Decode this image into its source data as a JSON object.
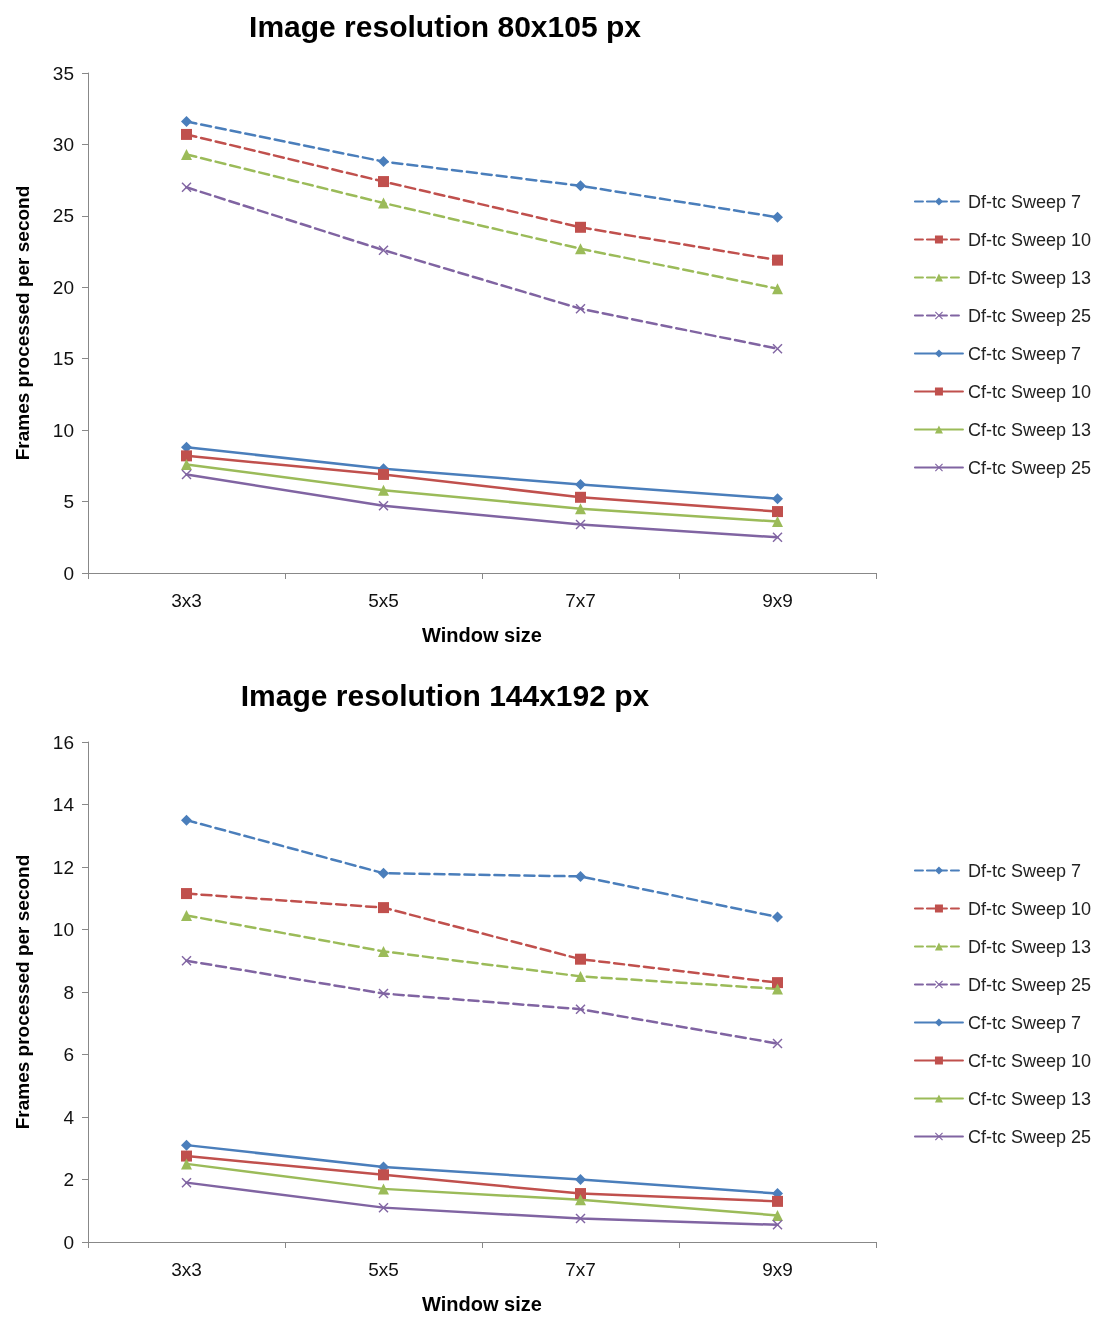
{
  "chart_data": [
    {
      "type": "line",
      "title": "Image resolution 80x105 px",
      "xlabel": "Window size",
      "ylabel": "Frames processed per second",
      "categories": [
        "3x3",
        "5x5",
        "7x7",
        "9x9"
      ],
      "ylim": [
        0,
        35
      ],
      "yticks": [
        0,
        5,
        10,
        15,
        20,
        25,
        30,
        35
      ],
      "grid": false,
      "legend": "right",
      "series": [
        {
          "name": "Df-tc Sweep 7",
          "color": "#4a7ebb",
          "marker": "diamond",
          "line_style": "dashed",
          "values": [
            31.6,
            28.8,
            27.1,
            24.9
          ]
        },
        {
          "name": "Df-tc Sweep 10",
          "color": "#c0504d",
          "marker": "square",
          "line_style": "dashed",
          "values": [
            30.7,
            27.4,
            24.2,
            21.9
          ]
        },
        {
          "name": "Df-tc Sweep 13",
          "color": "#9bbb59",
          "marker": "triangle",
          "line_style": "dashed",
          "values": [
            29.3,
            25.9,
            22.7,
            19.9
          ]
        },
        {
          "name": "Df-tc Sweep 25",
          "color": "#8064a2",
          "marker": "cross",
          "line_style": "dashed",
          "values": [
            27.0,
            22.6,
            18.5,
            15.7
          ]
        },
        {
          "name": "Cf-tc Sweep 7",
          "color": "#4a7ebb",
          "marker": "diamond",
          "line_style": "solid",
          "values": [
            8.8,
            7.3,
            6.2,
            5.2
          ]
        },
        {
          "name": "Cf-tc Sweep 10",
          "color": "#c0504d",
          "marker": "square",
          "line_style": "solid",
          "values": [
            8.2,
            6.9,
            5.3,
            4.3
          ]
        },
        {
          "name": "Cf-tc Sweep 13",
          "color": "#9bbb59",
          "marker": "triangle",
          "line_style": "solid",
          "values": [
            7.6,
            5.8,
            4.5,
            3.6
          ]
        },
        {
          "name": "Cf-tc Sweep 25",
          "color": "#8064a2",
          "marker": "cross",
          "line_style": "solid",
          "values": [
            6.9,
            4.7,
            3.4,
            2.5
          ]
        }
      ]
    },
    {
      "type": "line",
      "title": "Image resolution 144x192 px",
      "xlabel": "Window size",
      "ylabel": "Frames processed per second",
      "categories": [
        "3x3",
        "5x5",
        "7x7",
        "9x9"
      ],
      "ylim": [
        0,
        16
      ],
      "yticks": [
        0,
        2,
        4,
        6,
        8,
        10,
        12,
        14,
        16
      ],
      "grid": false,
      "legend": "right",
      "series": [
        {
          "name": "Df-tc Sweep 7",
          "color": "#4a7ebb",
          "marker": "diamond",
          "line_style": "dashed",
          "values": [
            13.5,
            11.8,
            11.7,
            10.4
          ]
        },
        {
          "name": "Df-tc Sweep 10",
          "color": "#c0504d",
          "marker": "square",
          "line_style": "dashed",
          "values": [
            11.15,
            10.7,
            9.05,
            8.3
          ]
        },
        {
          "name": "Df-tc Sweep 13",
          "color": "#9bbb59",
          "marker": "triangle",
          "line_style": "dashed",
          "values": [
            10.45,
            9.3,
            8.5,
            8.1
          ]
        },
        {
          "name": "Df-tc Sweep 25",
          "color": "#8064a2",
          "marker": "cross",
          "line_style": "dashed",
          "values": [
            9.0,
            7.95,
            7.45,
            6.35
          ]
        },
        {
          "name": "Cf-tc Sweep 7",
          "color": "#4a7ebb",
          "marker": "diamond",
          "line_style": "solid",
          "values": [
            3.1,
            2.4,
            2.0,
            1.55
          ]
        },
        {
          "name": "Cf-tc Sweep 10",
          "color": "#c0504d",
          "marker": "square",
          "line_style": "solid",
          "values": [
            2.75,
            2.15,
            1.55,
            1.3
          ]
        },
        {
          "name": "Cf-tc Sweep 13",
          "color": "#9bbb59",
          "marker": "triangle",
          "line_style": "solid",
          "values": [
            2.5,
            1.7,
            1.35,
            0.85
          ]
        },
        {
          "name": "Cf-tc Sweep 25",
          "color": "#8064a2",
          "marker": "cross",
          "line_style": "solid",
          "values": [
            1.9,
            1.1,
            0.75,
            0.55
          ]
        }
      ]
    }
  ]
}
